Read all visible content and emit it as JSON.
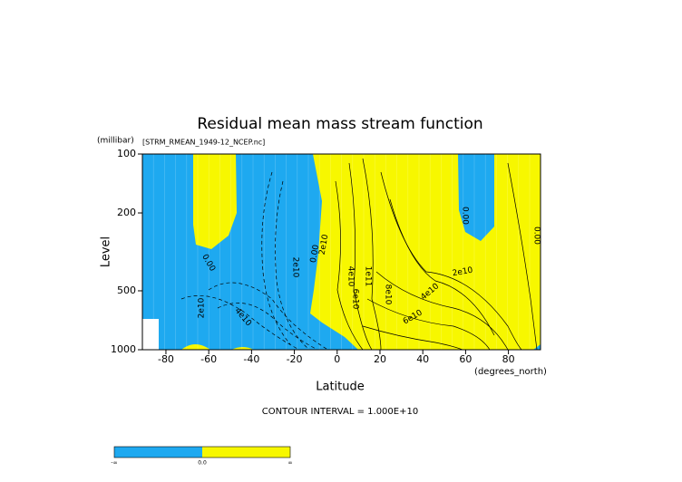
{
  "chart_data": {
    "type": "contour",
    "title": "Residual mean mass stream function",
    "subtitle": "[STRM_RMEAN_1949-12_NCEP.nc]",
    "y_unit": "(millibar)",
    "ylabel": "Level",
    "xlabel": "Latitude",
    "x_unit": "(degrees_north)",
    "xlim": [
      -91,
      95
    ],
    "xticks": [
      -80,
      -60,
      -40,
      -20,
      0,
      20,
      40,
      60,
      80
    ],
    "ylim": [
      1000,
      100
    ],
    "yticks": [
      100,
      200,
      500,
      1000
    ],
    "log_y": true,
    "negative_color": "#1ea9f0",
    "positive_color": "#f7f700",
    "contour_labels": [
      "0.00",
      "2e10",
      "4e10",
      "2e10",
      "0.00",
      "2e10",
      "4e10",
      "1e11",
      "6e10",
      "8e10",
      "2e10",
      "4e10",
      "6e10",
      "0.00",
      "0.00"
    ],
    "contour_interval": "CONTOUR INTERVAL = 1.000E+10",
    "colorbar_labels": [
      "-∞",
      "0.0",
      "∞"
    ]
  }
}
